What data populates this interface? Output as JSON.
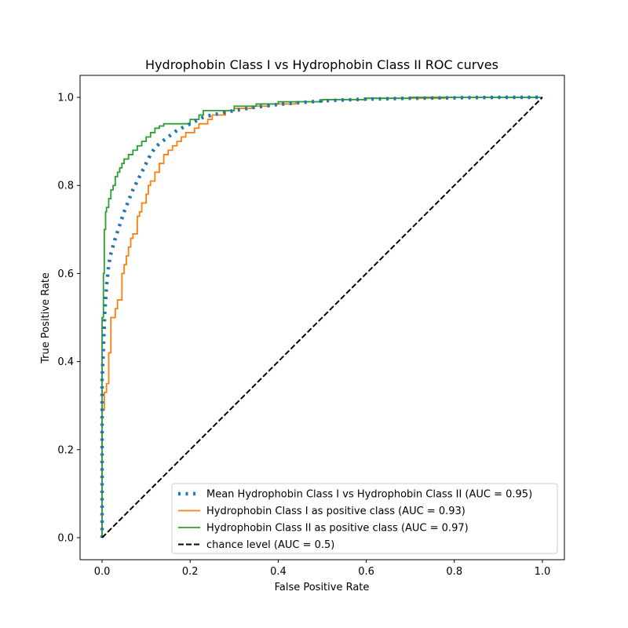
{
  "chart_data": {
    "type": "line",
    "title": "Hydrophobin Class I vs Hydrophobin Class II ROC curves",
    "xlabel": "False Positive Rate",
    "ylabel": "True Positive Rate",
    "xlim": [
      -0.05,
      1.05
    ],
    "ylim": [
      -0.05,
      1.05
    ],
    "x_ticks": [
      "0.0",
      "0.2",
      "0.4",
      "0.6",
      "0.8",
      "1.0"
    ],
    "y_ticks": [
      "0.0",
      "0.2",
      "0.4",
      "0.6",
      "0.8",
      "1.0"
    ],
    "grid": false,
    "legend_position": "lower-right",
    "series": [
      {
        "name": "Mean Hydrophobin Class I vs Hydrophobin Class II (AUC = 0.95)",
        "color": "#1f77b4",
        "style": "dotted",
        "x": [
          0.0,
          0.0,
          0.003,
          0.006,
          0.01,
          0.015,
          0.02,
          0.03,
          0.04,
          0.05,
          0.06,
          0.07,
          0.08,
          0.09,
          0.1,
          0.11,
          0.12,
          0.13,
          0.15,
          0.17,
          0.19,
          0.21,
          0.23,
          0.25,
          0.3,
          0.35,
          0.4,
          0.45,
          0.5,
          0.6,
          0.7,
          0.8,
          0.9,
          1.0
        ],
        "y": [
          0.0,
          0.36,
          0.43,
          0.51,
          0.57,
          0.62,
          0.645,
          0.68,
          0.71,
          0.74,
          0.765,
          0.79,
          0.81,
          0.83,
          0.85,
          0.87,
          0.885,
          0.895,
          0.91,
          0.925,
          0.935,
          0.945,
          0.955,
          0.96,
          0.97,
          0.978,
          0.984,
          0.988,
          0.992,
          0.996,
          0.998,
          0.999,
          1.0,
          1.0
        ]
      },
      {
        "name": "Hydrophobin Class I as positive class (AUC = 0.93)",
        "color": "#ff7f0e",
        "style": "solid",
        "x": [
          0.0,
          0.0,
          0.005,
          0.005,
          0.01,
          0.01,
          0.015,
          0.015,
          0.02,
          0.02,
          0.03,
          0.03,
          0.035,
          0.035,
          0.045,
          0.045,
          0.05,
          0.05,
          0.055,
          0.055,
          0.06,
          0.06,
          0.065,
          0.065,
          0.07,
          0.07,
          0.08,
          0.08,
          0.085,
          0.085,
          0.09,
          0.09,
          0.1,
          0.1,
          0.105,
          0.105,
          0.11,
          0.11,
          0.12,
          0.12,
          0.13,
          0.13,
          0.14,
          0.14,
          0.15,
          0.15,
          0.16,
          0.16,
          0.17,
          0.17,
          0.18,
          0.18,
          0.19,
          0.19,
          0.21,
          0.21,
          0.22,
          0.22,
          0.24,
          0.24,
          0.25,
          0.25,
          0.28,
          0.28,
          0.3,
          0.3,
          0.34,
          0.34,
          0.38,
          0.38,
          0.44,
          0.44,
          0.5,
          0.5,
          0.6,
          0.6,
          0.78
        ],
        "y": [
          0.0,
          0.29,
          0.29,
          0.33,
          0.33,
          0.35,
          0.35,
          0.42,
          0.42,
          0.5,
          0.5,
          0.52,
          0.52,
          0.54,
          0.54,
          0.6,
          0.6,
          0.62,
          0.62,
          0.64,
          0.64,
          0.66,
          0.66,
          0.68,
          0.68,
          0.69,
          0.69,
          0.73,
          0.73,
          0.74,
          0.74,
          0.76,
          0.76,
          0.78,
          0.78,
          0.8,
          0.8,
          0.81,
          0.81,
          0.83,
          0.83,
          0.85,
          0.85,
          0.87,
          0.87,
          0.88,
          0.88,
          0.89,
          0.89,
          0.9,
          0.9,
          0.91,
          0.91,
          0.92,
          0.92,
          0.93,
          0.93,
          0.94,
          0.94,
          0.95,
          0.95,
          0.96,
          0.96,
          0.97,
          0.97,
          0.975,
          0.975,
          0.98,
          0.98,
          0.985,
          0.985,
          0.99,
          0.99,
          0.995,
          0.995,
          0.998,
          0.998
        ]
      },
      {
        "name": "Hydrophobin Class II as positive class (AUC = 0.97)",
        "color": "#2ca02c",
        "style": "solid",
        "x": [
          0.0,
          0.0,
          0.003,
          0.003,
          0.005,
          0.005,
          0.008,
          0.008,
          0.01,
          0.01,
          0.015,
          0.015,
          0.02,
          0.02,
          0.025,
          0.025,
          0.03,
          0.03,
          0.035,
          0.035,
          0.04,
          0.04,
          0.045,
          0.045,
          0.05,
          0.05,
          0.06,
          0.06,
          0.07,
          0.07,
          0.08,
          0.08,
          0.09,
          0.09,
          0.1,
          0.1,
          0.11,
          0.11,
          0.12,
          0.12,
          0.13,
          0.13,
          0.14,
          0.14,
          0.2,
          0.2,
          0.22,
          0.22,
          0.23,
          0.23,
          0.3,
          0.3,
          0.35,
          0.35,
          0.4,
          0.4,
          0.5,
          0.5,
          0.6,
          0.6,
          0.7,
          0.7,
          0.8,
          0.8,
          1.0
        ],
        "y": [
          0.0,
          0.5,
          0.5,
          0.6,
          0.6,
          0.7,
          0.7,
          0.74,
          0.74,
          0.75,
          0.75,
          0.77,
          0.77,
          0.79,
          0.79,
          0.8,
          0.8,
          0.82,
          0.82,
          0.83,
          0.83,
          0.84,
          0.84,
          0.85,
          0.85,
          0.86,
          0.86,
          0.87,
          0.87,
          0.88,
          0.88,
          0.89,
          0.89,
          0.9,
          0.9,
          0.91,
          0.91,
          0.92,
          0.92,
          0.93,
          0.93,
          0.935,
          0.935,
          0.94,
          0.94,
          0.95,
          0.95,
          0.96,
          0.96,
          0.97,
          0.97,
          0.98,
          0.98,
          0.985,
          0.985,
          0.99,
          0.99,
          0.995,
          0.995,
          0.998,
          0.998,
          1.0,
          1.0,
          1.0,
          1.0
        ]
      },
      {
        "name": "chance level (AUC = 0.5)",
        "color": "#000000",
        "style": "dashed",
        "x": [
          0.0,
          1.0
        ],
        "y": [
          0.0,
          1.0
        ]
      }
    ]
  }
}
